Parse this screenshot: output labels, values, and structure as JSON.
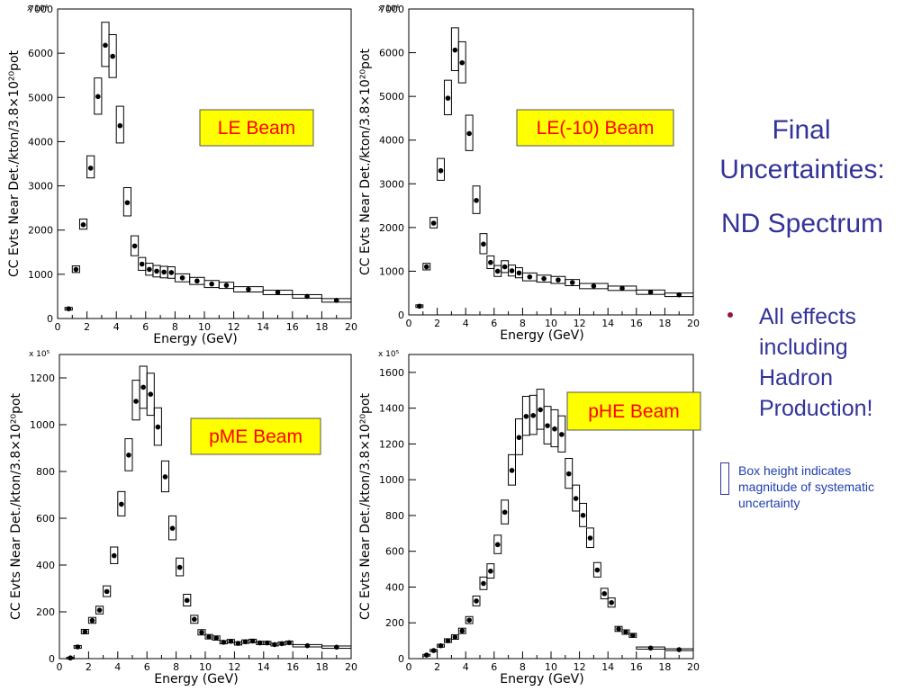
{
  "side_panel": {
    "title_line1": "Final",
    "title_line2": "Uncertainties:",
    "subtitle": "ND Spectrum",
    "bullet": "All effects including Hadron Production!",
    "note": "Box height indicates magnitude of systematic uncertainty",
    "title_color": "#333399",
    "bullet_dot_color": "#8b1a3c"
  },
  "chart_data": [
    {
      "type": "scatter",
      "label": "LE Beam",
      "xlabel": "Energy (GeV)",
      "ylabel": "CC Evts Near Det./kton/3.8×10²⁰pot",
      "scale_label": "x 10⁴",
      "xlim": [
        0,
        20
      ],
      "ylim": [
        0,
        7000
      ],
      "xticks": [
        "0",
        "2",
        "4",
        "6",
        "8",
        "10",
        "12",
        "14",
        "16",
        "18",
        "20"
      ],
      "yticks": [
        "0",
        "1000",
        "2000",
        "3000",
        "4000",
        "5000",
        "6000",
        "7000"
      ],
      "label_bg": "#ffff00",
      "label_color": "#ff0000",
      "points": [
        {
          "x": 0.75,
          "y": 220,
          "lo": 190,
          "hi": 250,
          "bw": 0.5
        },
        {
          "x": 1.25,
          "y": 1110,
          "lo": 1040,
          "hi": 1190,
          "bw": 0.5
        },
        {
          "x": 1.75,
          "y": 2120,
          "lo": 2020,
          "hi": 2250,
          "bw": 0.5
        },
        {
          "x": 2.25,
          "y": 3400,
          "lo": 3180,
          "hi": 3680,
          "bw": 0.5
        },
        {
          "x": 2.75,
          "y": 5020,
          "lo": 4620,
          "hi": 5440,
          "bw": 0.5
        },
        {
          "x": 3.25,
          "y": 6180,
          "lo": 5700,
          "hi": 6700,
          "bw": 0.5
        },
        {
          "x": 3.75,
          "y": 5930,
          "lo": 5450,
          "hi": 6420,
          "bw": 0.5
        },
        {
          "x": 4.25,
          "y": 4360,
          "lo": 3970,
          "hi": 4800,
          "bw": 0.5
        },
        {
          "x": 4.75,
          "y": 2620,
          "lo": 2320,
          "hi": 2960,
          "bw": 0.5
        },
        {
          "x": 5.25,
          "y": 1640,
          "lo": 1420,
          "hi": 1870,
          "bw": 0.5
        },
        {
          "x": 5.75,
          "y": 1230,
          "lo": 1090,
          "hi": 1380,
          "bw": 0.5
        },
        {
          "x": 6.25,
          "y": 1110,
          "lo": 980,
          "hi": 1250,
          "bw": 0.5
        },
        {
          "x": 6.75,
          "y": 1070,
          "lo": 940,
          "hi": 1200,
          "bw": 0.5
        },
        {
          "x": 7.25,
          "y": 1050,
          "lo": 920,
          "hi": 1180,
          "bw": 0.5
        },
        {
          "x": 7.75,
          "y": 1040,
          "lo": 910,
          "hi": 1170,
          "bw": 0.5
        },
        {
          "x": 8.5,
          "y": 920,
          "lo": 830,
          "hi": 1010,
          "bw": 1
        },
        {
          "x": 9.5,
          "y": 850,
          "lo": 770,
          "hi": 930,
          "bw": 1
        },
        {
          "x": 10.5,
          "y": 780,
          "lo": 700,
          "hi": 860,
          "bw": 1
        },
        {
          "x": 11.5,
          "y": 750,
          "lo": 680,
          "hi": 820,
          "bw": 1
        },
        {
          "x": 13,
          "y": 660,
          "lo": 600,
          "hi": 720,
          "bw": 2
        },
        {
          "x": 15,
          "y": 590,
          "lo": 540,
          "hi": 640,
          "bw": 2
        },
        {
          "x": 17,
          "y": 500,
          "lo": 460,
          "hi": 540,
          "bw": 2
        },
        {
          "x": 19,
          "y": 410,
          "lo": 370,
          "hi": 450,
          "bw": 2
        }
      ]
    },
    {
      "type": "scatter",
      "label": "LE(-10) Beam",
      "xlabel": "Energy (GeV)",
      "ylabel": "CC Evts Near Det./kton/3.8×10²⁰pot",
      "scale_label": "x 10⁴",
      "xlim": [
        0,
        20
      ],
      "ylim": [
        0,
        7000
      ],
      "xticks": [
        "0",
        "2",
        "4",
        "6",
        "8",
        "10",
        "12",
        "14",
        "16",
        "18",
        "20"
      ],
      "yticks": [
        "0",
        "1000",
        "2000",
        "3000",
        "4000",
        "5000",
        "6000",
        "7000"
      ],
      "label_bg": "#ffff00",
      "label_color": "#ff0000",
      "points": [
        {
          "x": 0.75,
          "y": 200,
          "lo": 170,
          "hi": 230,
          "bw": 0.5
        },
        {
          "x": 1.25,
          "y": 1100,
          "lo": 1030,
          "hi": 1180,
          "bw": 0.5
        },
        {
          "x": 1.75,
          "y": 2100,
          "lo": 1990,
          "hi": 2230,
          "bw": 0.5
        },
        {
          "x": 2.25,
          "y": 3300,
          "lo": 3080,
          "hi": 3580,
          "bw": 0.5
        },
        {
          "x": 2.75,
          "y": 4960,
          "lo": 4580,
          "hi": 5370,
          "bw": 0.5
        },
        {
          "x": 3.25,
          "y": 6060,
          "lo": 5590,
          "hi": 6570,
          "bw": 0.5
        },
        {
          "x": 3.75,
          "y": 5770,
          "lo": 5310,
          "hi": 6250,
          "bw": 0.5
        },
        {
          "x": 4.25,
          "y": 4150,
          "lo": 3760,
          "hi": 4570,
          "bw": 0.5
        },
        {
          "x": 4.75,
          "y": 2620,
          "lo": 2320,
          "hi": 2950,
          "bw": 0.5
        },
        {
          "x": 5.25,
          "y": 1620,
          "lo": 1400,
          "hi": 1860,
          "bw": 0.5
        },
        {
          "x": 5.75,
          "y": 1200,
          "lo": 1060,
          "hi": 1350,
          "bw": 0.5
        },
        {
          "x": 6.25,
          "y": 1000,
          "lo": 880,
          "hi": 1130,
          "bw": 0.5
        },
        {
          "x": 6.75,
          "y": 1100,
          "lo": 970,
          "hi": 1240,
          "bw": 0.5
        },
        {
          "x": 7.25,
          "y": 1010,
          "lo": 890,
          "hi": 1140,
          "bw": 0.5
        },
        {
          "x": 7.75,
          "y": 960,
          "lo": 850,
          "hi": 1080,
          "bw": 0.5
        },
        {
          "x": 8.5,
          "y": 870,
          "lo": 780,
          "hi": 960,
          "bw": 1
        },
        {
          "x": 9.5,
          "y": 830,
          "lo": 750,
          "hi": 910,
          "bw": 1
        },
        {
          "x": 10.5,
          "y": 800,
          "lo": 720,
          "hi": 880,
          "bw": 1
        },
        {
          "x": 11.5,
          "y": 740,
          "lo": 670,
          "hi": 810,
          "bw": 1
        },
        {
          "x": 13,
          "y": 660,
          "lo": 600,
          "hi": 720,
          "bw": 2
        },
        {
          "x": 15,
          "y": 610,
          "lo": 560,
          "hi": 660,
          "bw": 2
        },
        {
          "x": 17,
          "y": 520,
          "lo": 470,
          "hi": 570,
          "bw": 2
        },
        {
          "x": 19,
          "y": 460,
          "lo": 420,
          "hi": 500,
          "bw": 2
        }
      ]
    },
    {
      "type": "scatter",
      "label": "pME Beam",
      "xlabel": "Energy (GeV)",
      "ylabel": "CC Evts Near Det./kton/3.8×10²⁰pot",
      "scale_label": "x 10⁵",
      "xlim": [
        0,
        20
      ],
      "ylim": [
        0,
        1300
      ],
      "xticks": [
        "0",
        "2",
        "4",
        "6",
        "8",
        "10",
        "12",
        "14",
        "16",
        "18",
        "20"
      ],
      "yticks": [
        "0",
        "200",
        "400",
        "600",
        "800",
        "1000",
        "1200"
      ],
      "label_bg": "#ffff00",
      "label_color": "#ff0000",
      "points": [
        {
          "x": 0.75,
          "y": 3,
          "lo": 1,
          "hi": 6,
          "bw": 0.5
        },
        {
          "x": 1.25,
          "y": 50,
          "lo": 44,
          "hi": 56,
          "bw": 0.5
        },
        {
          "x": 1.75,
          "y": 115,
          "lo": 106,
          "hi": 125,
          "bw": 0.5
        },
        {
          "x": 2.25,
          "y": 163,
          "lo": 151,
          "hi": 176,
          "bw": 0.5
        },
        {
          "x": 2.75,
          "y": 207,
          "lo": 191,
          "hi": 224,
          "bw": 0.5
        },
        {
          "x": 3.25,
          "y": 287,
          "lo": 265,
          "hi": 311,
          "bw": 0.5
        },
        {
          "x": 3.75,
          "y": 440,
          "lo": 406,
          "hi": 477,
          "bw": 0.5
        },
        {
          "x": 4.25,
          "y": 660,
          "lo": 610,
          "hi": 714,
          "bw": 0.5
        },
        {
          "x": 4.75,
          "y": 870,
          "lo": 803,
          "hi": 940,
          "bw": 0.5
        },
        {
          "x": 5.25,
          "y": 1100,
          "lo": 1020,
          "hi": 1190,
          "bw": 0.5
        },
        {
          "x": 5.75,
          "y": 1160,
          "lo": 1070,
          "hi": 1250,
          "bw": 0.5
        },
        {
          "x": 6.25,
          "y": 1130,
          "lo": 1040,
          "hi": 1220,
          "bw": 0.5
        },
        {
          "x": 6.75,
          "y": 990,
          "lo": 912,
          "hi": 1072,
          "bw": 0.5
        },
        {
          "x": 7.25,
          "y": 777,
          "lo": 713,
          "hi": 845,
          "bw": 0.5
        },
        {
          "x": 7.75,
          "y": 557,
          "lo": 508,
          "hi": 610,
          "bw": 0.5
        },
        {
          "x": 8.25,
          "y": 390,
          "lo": 354,
          "hi": 430,
          "bw": 0.5
        },
        {
          "x": 8.75,
          "y": 249,
          "lo": 225,
          "hi": 275,
          "bw": 0.5
        },
        {
          "x": 9.25,
          "y": 168,
          "lo": 151,
          "hi": 185,
          "bw": 0.5
        },
        {
          "x": 9.75,
          "y": 112,
          "lo": 101,
          "hi": 124,
          "bw": 0.5
        },
        {
          "x": 10.25,
          "y": 93,
          "lo": 84,
          "hi": 103,
          "bw": 0.5
        },
        {
          "x": 10.75,
          "y": 88,
          "lo": 79,
          "hi": 97,
          "bw": 0.5
        },
        {
          "x": 11.25,
          "y": 70,
          "lo": 63,
          "hi": 77,
          "bw": 0.5
        },
        {
          "x": 11.75,
          "y": 74,
          "lo": 67,
          "hi": 82,
          "bw": 0.5
        },
        {
          "x": 12.25,
          "y": 65,
          "lo": 58,
          "hi": 72,
          "bw": 0.5
        },
        {
          "x": 12.75,
          "y": 72,
          "lo": 65,
          "hi": 80,
          "bw": 0.5
        },
        {
          "x": 13.25,
          "y": 75,
          "lo": 68,
          "hi": 83,
          "bw": 0.5
        },
        {
          "x": 13.75,
          "y": 67,
          "lo": 60,
          "hi": 74,
          "bw": 0.5
        },
        {
          "x": 14.25,
          "y": 67,
          "lo": 60,
          "hi": 74,
          "bw": 0.5
        },
        {
          "x": 14.75,
          "y": 60,
          "lo": 54,
          "hi": 66,
          "bw": 0.5
        },
        {
          "x": 15.25,
          "y": 64,
          "lo": 58,
          "hi": 71,
          "bw": 0.5
        },
        {
          "x": 15.75,
          "y": 68,
          "lo": 61,
          "hi": 75,
          "bw": 0.5
        },
        {
          "x": 17,
          "y": 55,
          "lo": 50,
          "hi": 60,
          "bw": 2
        },
        {
          "x": 19,
          "y": 49,
          "lo": 44,
          "hi": 54,
          "bw": 2
        }
      ]
    },
    {
      "type": "scatter",
      "label": "pHE Beam",
      "xlabel": "Energy (GeV)",
      "ylabel": "CC Evts Near Det./kton/3.8×10²⁰pot",
      "scale_label": "x 10⁵",
      "xlim": [
        0,
        20
      ],
      "ylim": [
        0,
        1700
      ],
      "xticks": [
        "0",
        "2",
        "4",
        "6",
        "8",
        "10",
        "12",
        "14",
        "16",
        "18",
        "20"
      ],
      "yticks": [
        "0",
        "200",
        "400",
        "600",
        "800",
        "1000",
        "1200",
        "1400",
        "1600"
      ],
      "label_bg": "#ffff00",
      "label_color": "#ff0000",
      "points": [
        {
          "x": 1.25,
          "y": 20,
          "lo": 16,
          "hi": 24,
          "bw": 0.5
        },
        {
          "x": 1.75,
          "y": 45,
          "lo": 39,
          "hi": 51,
          "bw": 0.5
        },
        {
          "x": 2.25,
          "y": 72,
          "lo": 64,
          "hi": 80,
          "bw": 0.5
        },
        {
          "x": 2.75,
          "y": 100,
          "lo": 90,
          "hi": 111,
          "bw": 0.5
        },
        {
          "x": 3.25,
          "y": 120,
          "lo": 108,
          "hi": 133,
          "bw": 0.5
        },
        {
          "x": 3.75,
          "y": 155,
          "lo": 140,
          "hi": 170,
          "bw": 0.5
        },
        {
          "x": 4.25,
          "y": 215,
          "lo": 196,
          "hi": 235,
          "bw": 0.5
        },
        {
          "x": 4.75,
          "y": 322,
          "lo": 295,
          "hi": 350,
          "bw": 0.5
        },
        {
          "x": 5.25,
          "y": 420,
          "lo": 386,
          "hi": 456,
          "bw": 0.5
        },
        {
          "x": 5.75,
          "y": 489,
          "lo": 450,
          "hi": 530,
          "bw": 0.5
        },
        {
          "x": 6.25,
          "y": 637,
          "lo": 587,
          "hi": 690,
          "bw": 0.5
        },
        {
          "x": 6.75,
          "y": 818,
          "lo": 753,
          "hi": 886,
          "bw": 0.5
        },
        {
          "x": 7.25,
          "y": 1052,
          "lo": 970,
          "hi": 1140,
          "bw": 0.5
        },
        {
          "x": 7.75,
          "y": 1236,
          "lo": 1140,
          "hi": 1340,
          "bw": 0.5
        },
        {
          "x": 8.25,
          "y": 1354,
          "lo": 1248,
          "hi": 1466,
          "bw": 0.5
        },
        {
          "x": 8.75,
          "y": 1359,
          "lo": 1253,
          "hi": 1472,
          "bw": 0.5
        },
        {
          "x": 9.25,
          "y": 1391,
          "lo": 1282,
          "hi": 1506,
          "bw": 0.5
        },
        {
          "x": 9.75,
          "y": 1302,
          "lo": 1200,
          "hi": 1410,
          "bw": 0.5
        },
        {
          "x": 10.25,
          "y": 1284,
          "lo": 1184,
          "hi": 1391,
          "bw": 0.5
        },
        {
          "x": 10.75,
          "y": 1253,
          "lo": 1155,
          "hi": 1357,
          "bw": 0.5
        },
        {
          "x": 11.25,
          "y": 1033,
          "lo": 952,
          "hi": 1119,
          "bw": 0.5
        },
        {
          "x": 11.75,
          "y": 895,
          "lo": 825,
          "hi": 970,
          "bw": 0.5
        },
        {
          "x": 12.25,
          "y": 801,
          "lo": 738,
          "hi": 868,
          "bw": 0.5
        },
        {
          "x": 12.75,
          "y": 674,
          "lo": 621,
          "hi": 730,
          "bw": 0.5
        },
        {
          "x": 13.25,
          "y": 495,
          "lo": 456,
          "hi": 537,
          "bw": 0.5
        },
        {
          "x": 13.75,
          "y": 363,
          "lo": 334,
          "hi": 393,
          "bw": 0.5
        },
        {
          "x": 14.25,
          "y": 313,
          "lo": 288,
          "hi": 339,
          "bw": 0.5
        },
        {
          "x": 14.75,
          "y": 166,
          "lo": 152,
          "hi": 180,
          "bw": 0.5
        },
        {
          "x": 15.25,
          "y": 148,
          "lo": 136,
          "hi": 161,
          "bw": 0.5
        },
        {
          "x": 15.75,
          "y": 130,
          "lo": 119,
          "hi": 141,
          "bw": 0.5
        },
        {
          "x": 17,
          "y": 59,
          "lo": 53,
          "hi": 65,
          "bw": 2
        },
        {
          "x": 19,
          "y": 50,
          "lo": 45,
          "hi": 55,
          "bw": 2
        }
      ]
    }
  ]
}
